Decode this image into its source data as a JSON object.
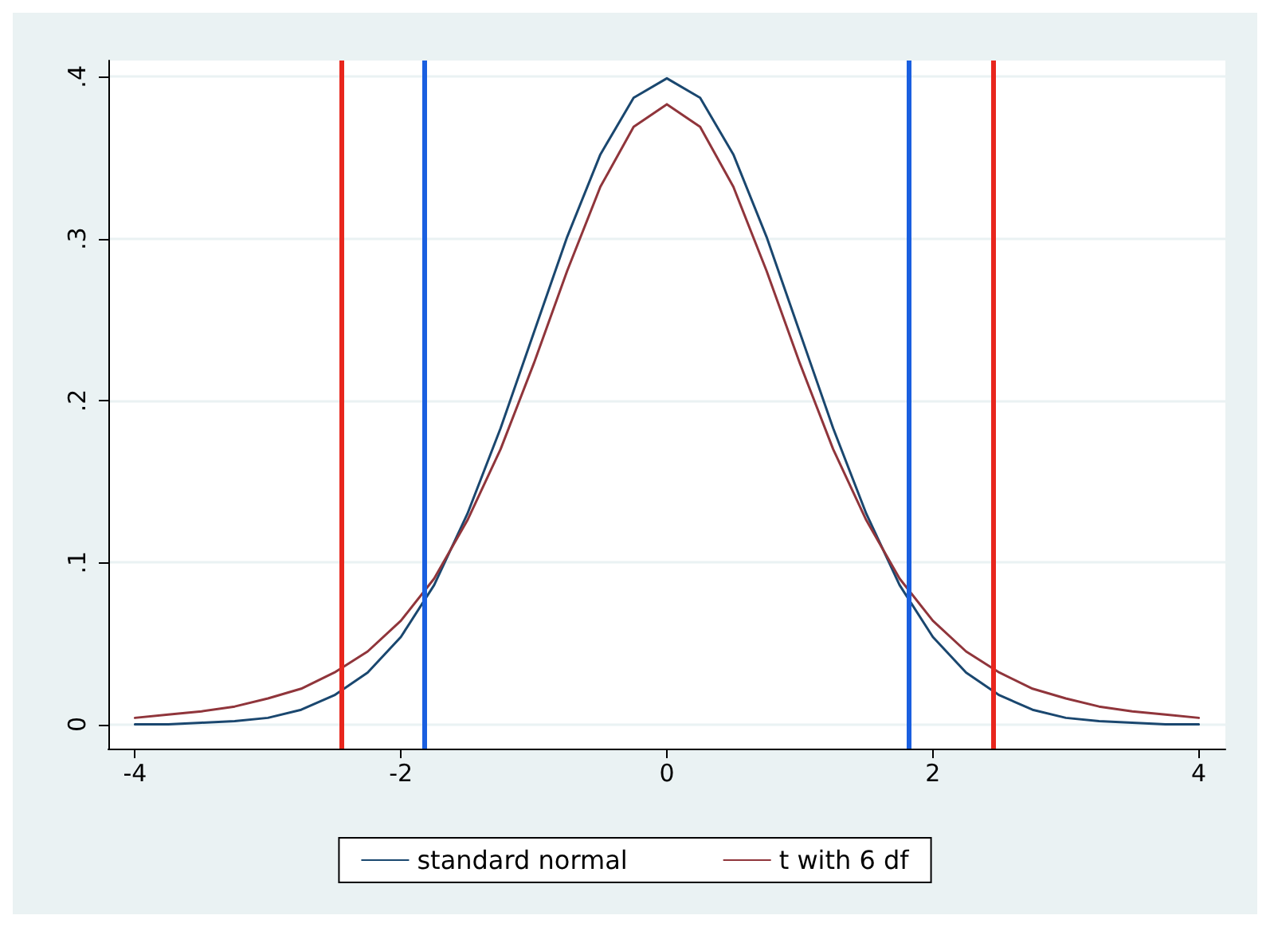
{
  "chart_data": {
    "type": "line",
    "x": [
      -4,
      -3.75,
      -3.5,
      -3.25,
      -3,
      -2.75,
      -2.5,
      -2.25,
      -2,
      -1.75,
      -1.5,
      -1.25,
      -1,
      -0.75,
      -0.5,
      -0.25,
      0,
      0.25,
      0.5,
      0.75,
      1,
      1.25,
      1.5,
      1.75,
      2,
      2.25,
      2.5,
      2.75,
      3,
      3.25,
      3.5,
      3.75,
      4
    ],
    "series": [
      {
        "name": "standard normal",
        "color": "#1a476f",
        "values": [
          0.0,
          0.0,
          0.001,
          0.002,
          0.004,
          0.009,
          0.018,
          0.032,
          0.054,
          0.086,
          0.13,
          0.183,
          0.242,
          0.301,
          0.352,
          0.387,
          0.399,
          0.387,
          0.352,
          0.301,
          0.242,
          0.183,
          0.13,
          0.086,
          0.054,
          0.032,
          0.018,
          0.009,
          0.004,
          0.002,
          0.001,
          0.0,
          0.0
        ]
      },
      {
        "name": "t with 6 df",
        "color": "#90353b",
        "values": [
          0.004,
          0.006,
          0.008,
          0.011,
          0.016,
          0.022,
          0.032,
          0.045,
          0.064,
          0.09,
          0.126,
          0.17,
          0.223,
          0.28,
          0.332,
          0.369,
          0.383,
          0.369,
          0.332,
          0.28,
          0.223,
          0.17,
          0.126,
          0.09,
          0.064,
          0.045,
          0.032,
          0.022,
          0.016,
          0.011,
          0.008,
          0.006,
          0.004
        ]
      }
    ],
    "xlim": [
      -4.2,
      4.2
    ],
    "xticks": [
      -4,
      -2,
      0,
      2,
      4
    ],
    "ylim": [
      -0.015,
      0.41
    ],
    "yticks": [
      {
        "value": 0,
        "label": "0"
      },
      {
        "value": 0.1,
        "label": ".1"
      },
      {
        "value": 0.2,
        "label": ".2"
      },
      {
        "value": 0.3,
        "label": ".3"
      },
      {
        "value": 0.4,
        "label": ".4"
      }
    ],
    "ref_lines": [
      {
        "axis": "x",
        "value": -1.82,
        "color": "#1a5fe0"
      },
      {
        "axis": "x",
        "value": 1.82,
        "color": "#1a5fe0"
      },
      {
        "axis": "x",
        "value": -2.45,
        "color": "#e8261d"
      },
      {
        "axis": "x",
        "value": 2.45,
        "color": "#e8261d"
      }
    ],
    "grid": "y",
    "legend": "bottom",
    "marker": "none",
    "line_style": "solid"
  }
}
